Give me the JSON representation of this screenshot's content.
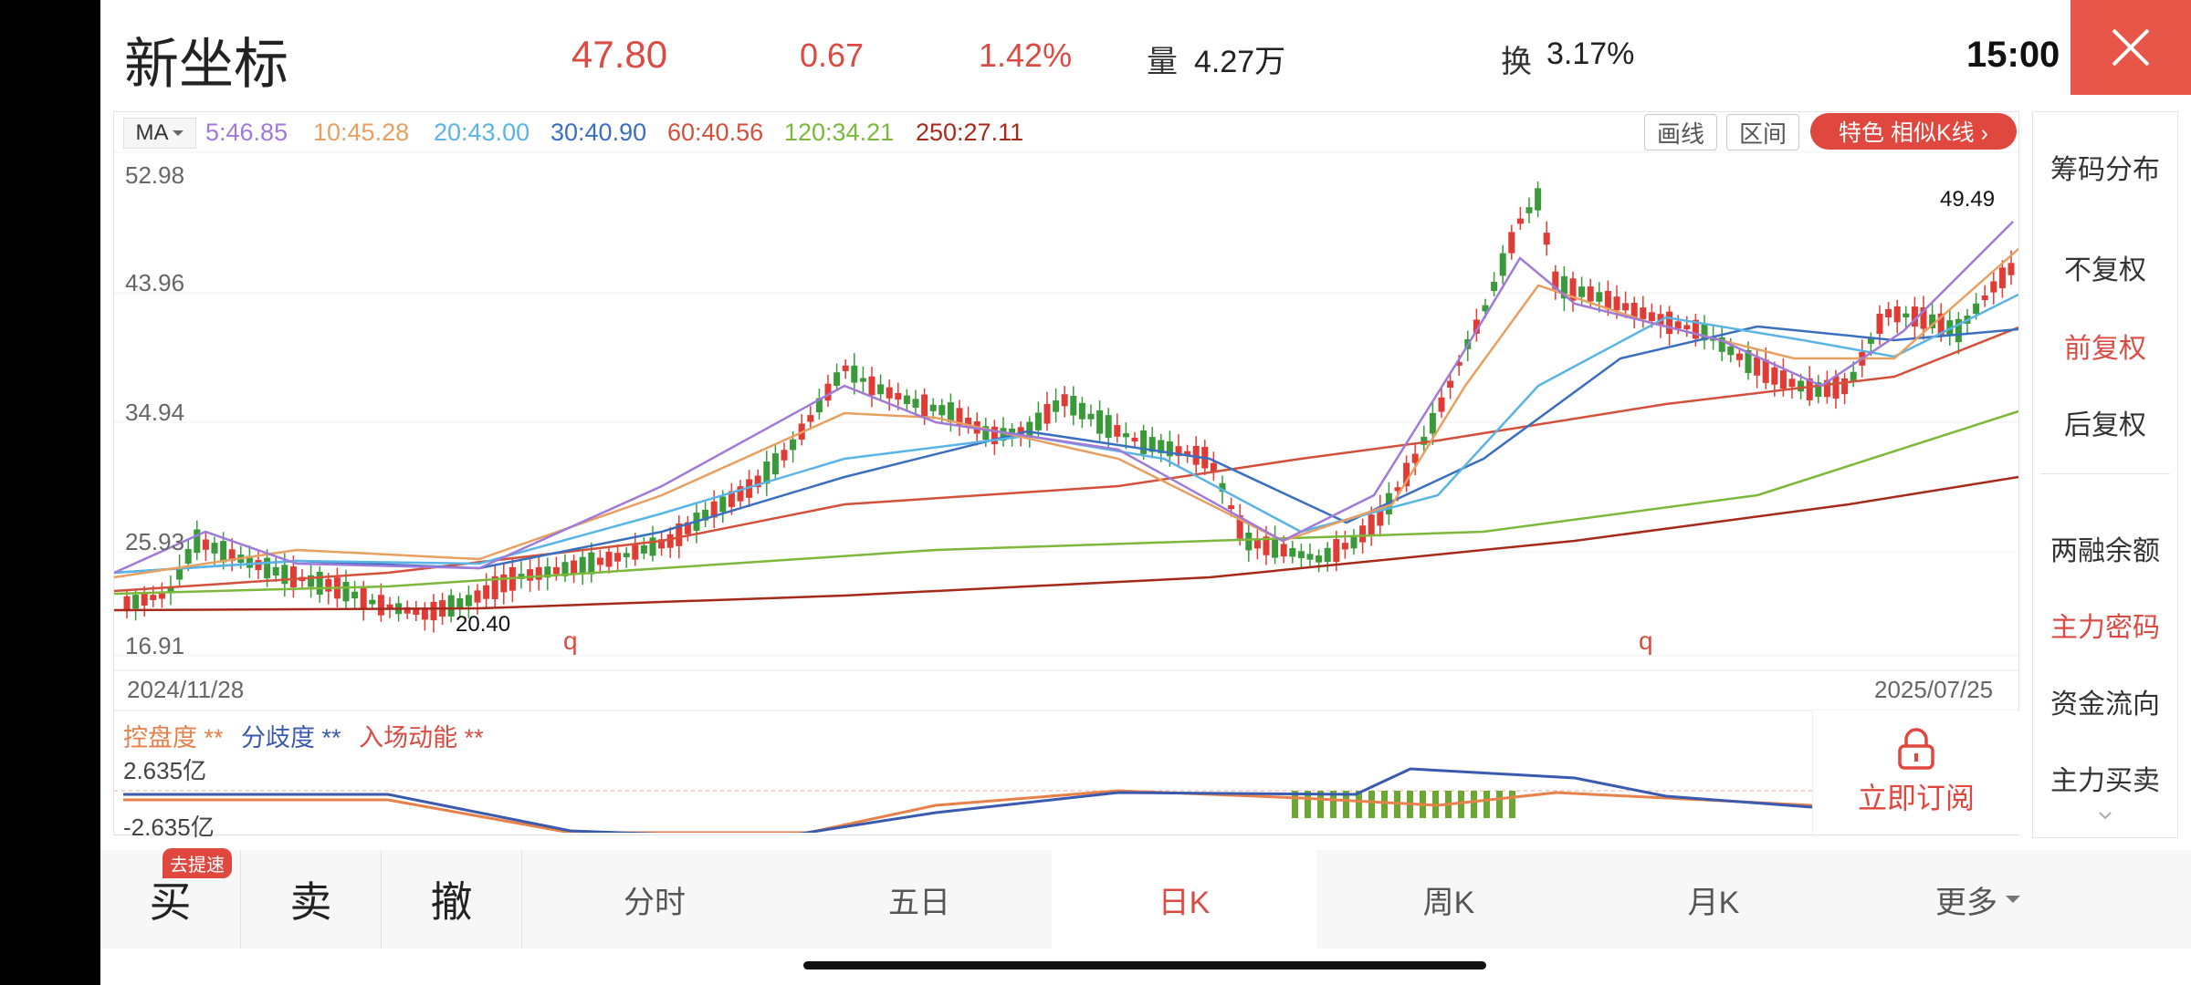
{
  "header": {
    "stock_name": "新坐标",
    "price": "47.80",
    "change": "0.67",
    "change_pct": "1.42%",
    "volume_label": "量",
    "volume": "4.27万",
    "turnover_label": "换",
    "turnover": "3.17%",
    "time": "15:00"
  },
  "colors": {
    "up": "#e03c35",
    "down": "#3a9a3a",
    "accent": "#e0473e"
  },
  "ma": {
    "button": "MA",
    "values": [
      {
        "text": "5:46.85",
        "color": "#a07ad8"
      },
      {
        "text": "10:45.28",
        "color": "#e8a060"
      },
      {
        "text": "20:43.00",
        "color": "#5ab4e6"
      },
      {
        "text": "30:40.90",
        "color": "#3a6fc0"
      },
      {
        "text": "60:40.56",
        "color": "#d4503a"
      },
      {
        "text": "120:34.21",
        "color": "#7cb83a"
      },
      {
        "text": "250:27.11",
        "color": "#a52a1a"
      }
    ]
  },
  "toolbar": {
    "draw_line": "画线",
    "range": "区间",
    "feature": "特色  相似K线 ›"
  },
  "chart": {
    "y_ticks": [
      "52.98",
      "43.96",
      "34.94",
      "25.93",
      "16.91"
    ],
    "start_date": "2024/11/28",
    "end_date": "2025/07/25",
    "high_label": "49.49",
    "low_label": "20.40",
    "signal_q": "q"
  },
  "indicator": {
    "kpd": "控盘度 **",
    "fqd": "分歧度 **",
    "rcdn": "入场动能 **",
    "top_value": "2.635亿",
    "bottom_value": "-2.635亿",
    "subscribe": "立即订阅"
  },
  "sidebar": {
    "items": [
      "筹码分布",
      "不复权",
      "前复权",
      "后复权",
      "两融余额",
      "主力密码",
      "资金流向",
      "主力买卖"
    ]
  },
  "bottom": {
    "buy": "买",
    "sell": "卖",
    "cancel": "撤",
    "speed_badge": "去提速",
    "tabs": [
      "分时",
      "五日",
      "日K",
      "周K",
      "月K",
      "更多"
    ]
  }
}
